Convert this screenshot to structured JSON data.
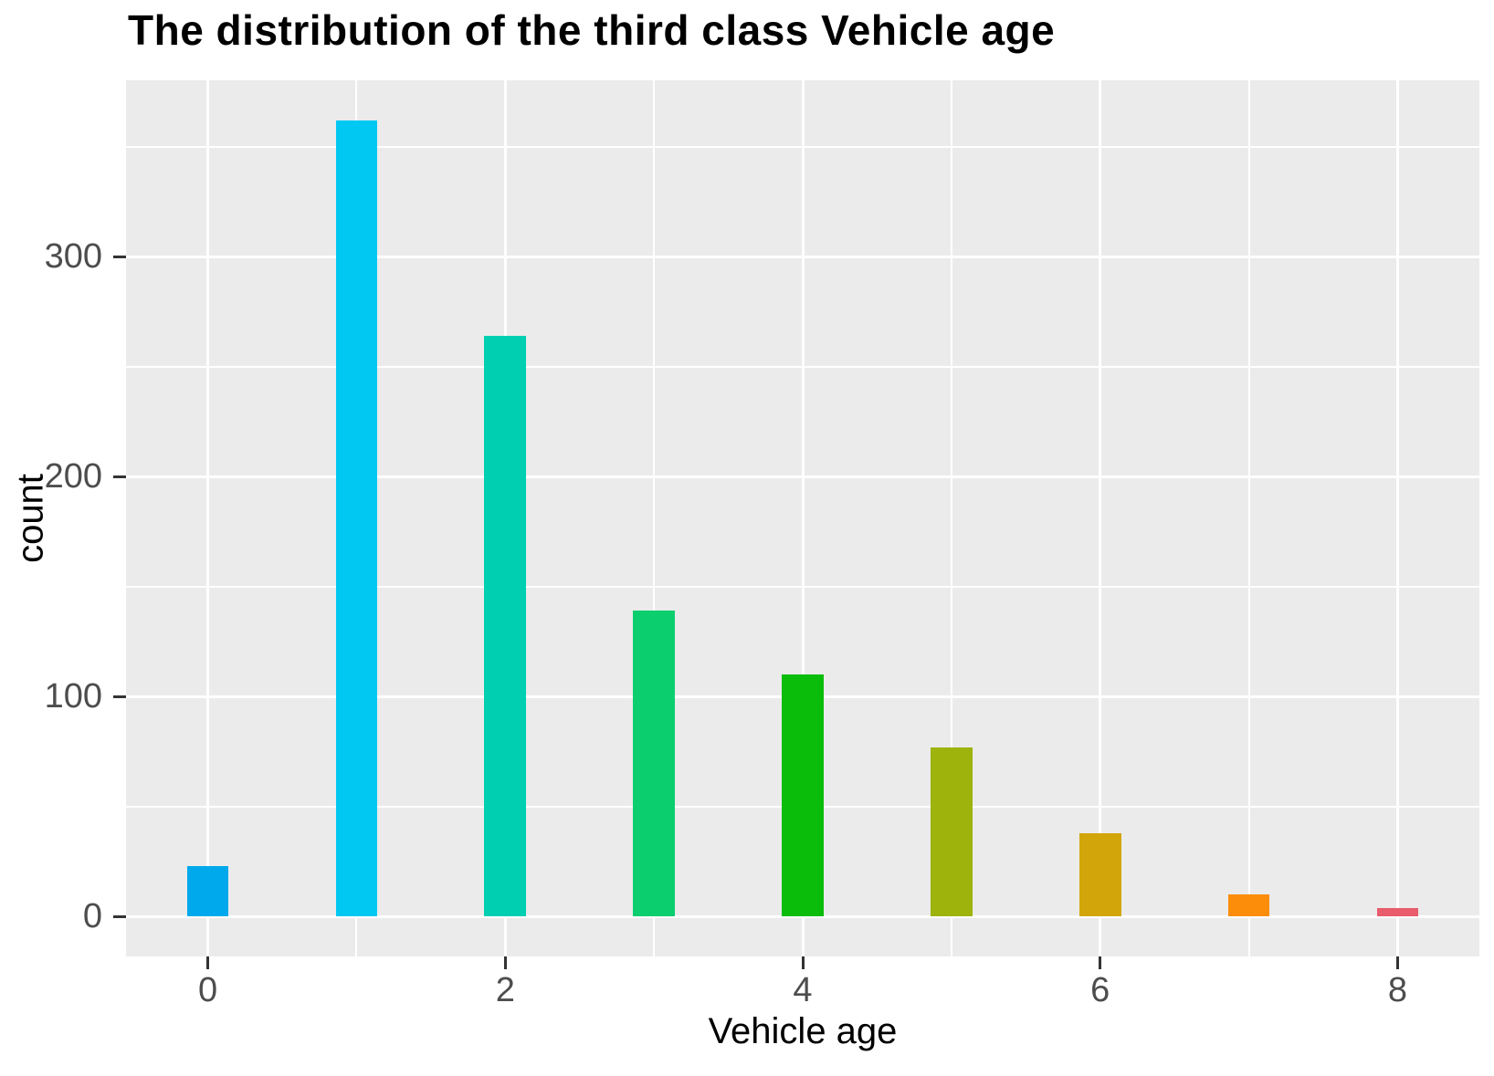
{
  "chart_data": {
    "type": "bar",
    "title": "The distribution of the third class Vehicle age",
    "xlabel": "Vehicle age",
    "ylabel": "count",
    "x": [
      0,
      1,
      2,
      3,
      4,
      5,
      6,
      7,
      8
    ],
    "values": [
      23,
      362,
      264,
      139,
      110,
      77,
      38,
      10,
      4
    ],
    "bar_colors": [
      "#00A9EC",
      "#00C8F2",
      "#00CFB2",
      "#0BCE6E",
      "#0BBD0B",
      "#9EB30C",
      "#D2A60B",
      "#FB8D0B",
      "#E85C6C"
    ],
    "x_ticks": [
      0,
      2,
      4,
      6,
      8
    ],
    "x_minor_ticks": [
      1,
      3,
      5,
      7
    ],
    "y_ticks": [
      0,
      100,
      200,
      300
    ],
    "y_minor_ticks": [
      50,
      150,
      250,
      350
    ],
    "xlim": [
      -0.55,
      8.55
    ],
    "ylim": [
      -18.1,
      380.1
    ],
    "bar_width": 0.28,
    "grid": "on",
    "legend": "none",
    "panel_background": "#EBEBEB",
    "grid_color": "#FFFFFF",
    "tick_mark_color": "#333333",
    "tick_label_color": "#4D4D4D",
    "title_color": "#000000"
  }
}
